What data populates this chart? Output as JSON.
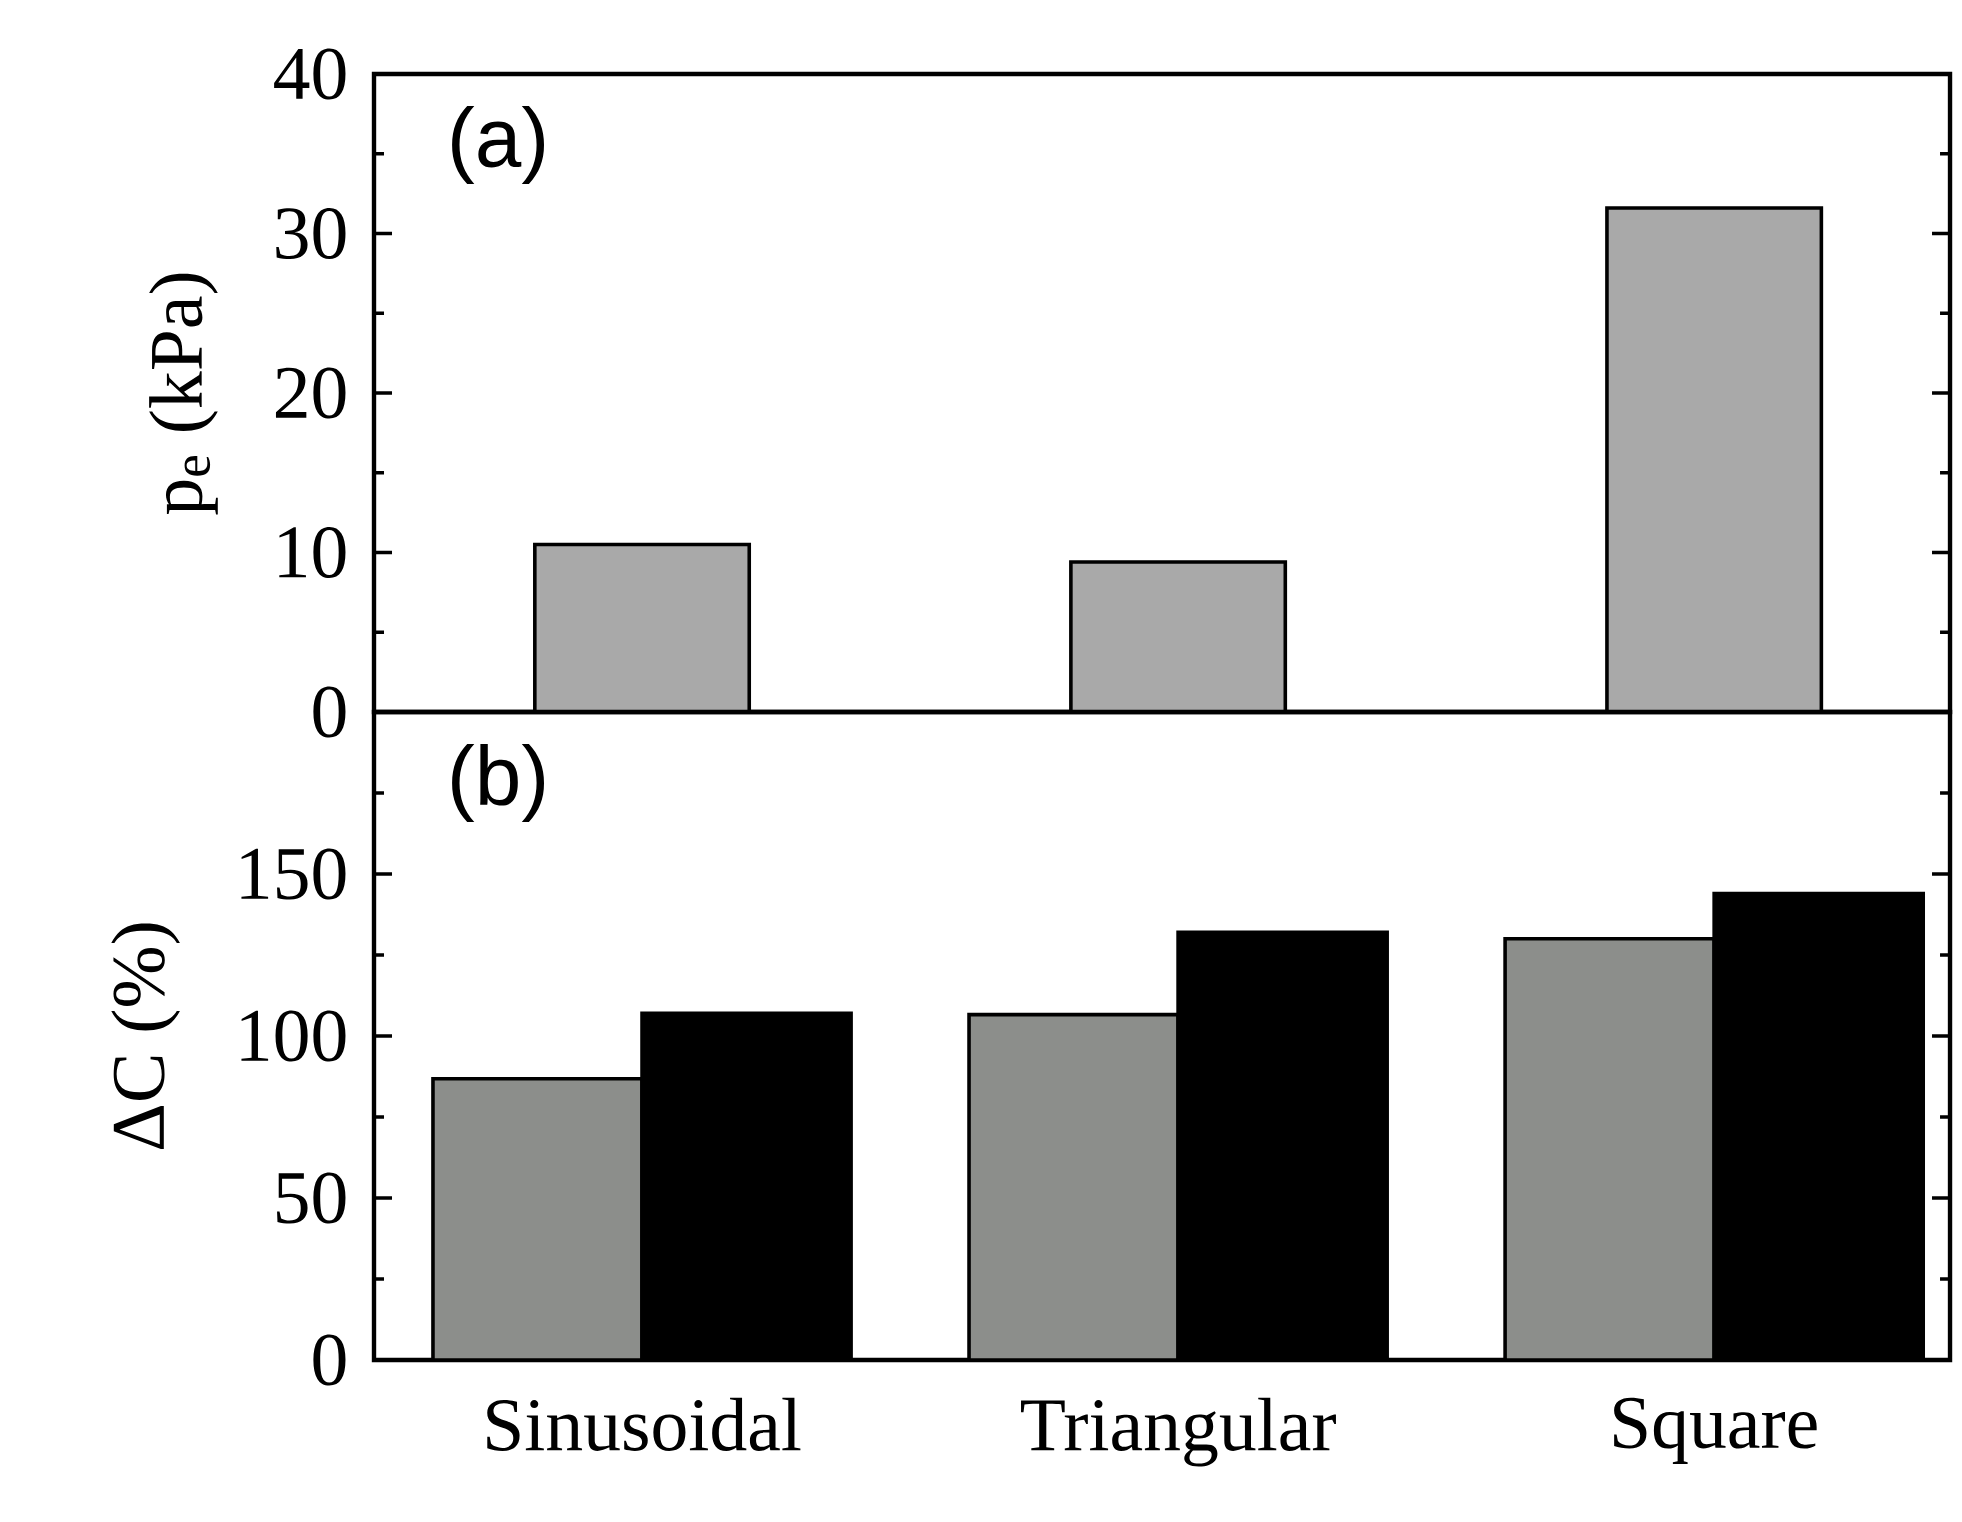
{
  "chart_data": [
    {
      "type": "bar",
      "ylabel": "p$_{e}$ (kPa)",
      "annotations": [
        "(a)"
      ],
      "categories": [
        null,
        null,
        null
      ],
      "values": [
        10.5,
        9.4,
        31.6
      ],
      "color": "#a9a9a9",
      "ylim": [
        0,
        40
      ],
      "yticks": [
        0,
        10,
        20,
        30,
        40
      ],
      "tick_labels": "y"
    },
    {
      "type": "bar",
      "ylabel": "ΔC (%)",
      "annotations": [
        "(b)"
      ],
      "categories": [
        "Sinusoidal",
        "Triangular",
        "Square"
      ],
      "series": [
        {
          "color": "#8c8e8b",
          "values": [
            86.8,
            106.6,
            130
          ]
        },
        {
          "color": "#000000",
          "values": [
            107,
            132,
            144
          ]
        }
      ],
      "ylim": [
        0,
        200
      ],
      "yticks": [
        0,
        50,
        100,
        150,
        {
          "value": 200,
          "label": null
        }
      ]
    }
  ]
}
